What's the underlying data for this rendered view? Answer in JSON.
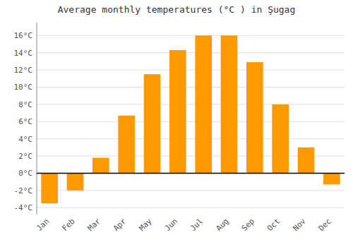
{
  "chart_data": {
    "type": "bar",
    "title": "Average monthly temperatures (°C ) in Şugag",
    "categories": [
      "Jan",
      "Feb",
      "Mar",
      "Apr",
      "May",
      "Jun",
      "Jul",
      "Aug",
      "Sep",
      "Oct",
      "Nov",
      "Dec"
    ],
    "values": [
      -3.5,
      -2.0,
      1.8,
      6.7,
      11.5,
      14.3,
      16.0,
      16.0,
      12.9,
      8.0,
      3.0,
      -1.3
    ],
    "color": "#FF9900",
    "ylim": [
      -4.8,
      17.5
    ],
    "yticks": [
      {
        "value": -4,
        "label": "-4°C"
      },
      {
        "value": -2,
        "label": "-2°C"
      },
      {
        "value": 0,
        "label": "0°C"
      },
      {
        "value": 2,
        "label": "2°C"
      },
      {
        "value": 4,
        "label": "4°C"
      },
      {
        "value": 6,
        "label": "6°C"
      },
      {
        "value": 8,
        "label": "8°C"
      },
      {
        "value": 10,
        "label": "10°C"
      },
      {
        "value": 12,
        "label": "12°C"
      },
      {
        "value": 14,
        "label": "14°C"
      },
      {
        "value": 16,
        "label": "16°C"
      }
    ],
    "grid": true
  }
}
